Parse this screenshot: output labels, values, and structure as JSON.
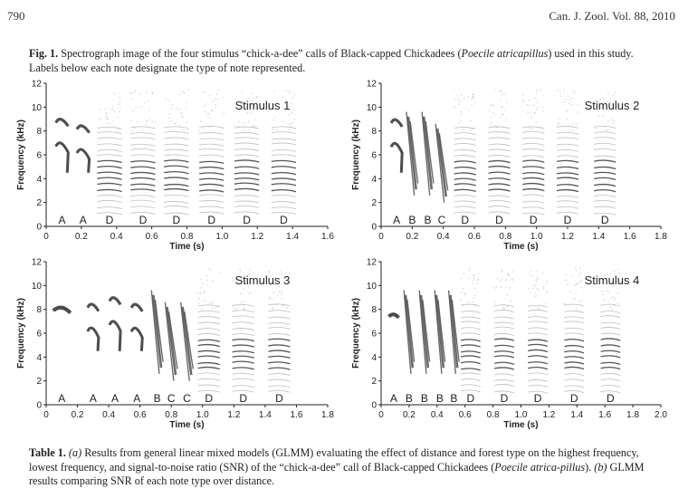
{
  "header": {
    "page_number": "790",
    "journal": "Can. J. Zool. Vol. 88, 2010"
  },
  "figure_caption": {
    "label": "Fig. 1.",
    "text_1": " Spectrograph image of the four stimulus “chick-a-dee” calls of Black-capped Chickadees (",
    "species": "Poecile atricapillus",
    "text_2": ") used in this study. Labels below each note designate the type of note represented."
  },
  "table_caption": {
    "label": "Table 1.",
    "part_a_label": "(a)",
    "text_1": " Results from general linear mixed models (GLMM) evaluating the effect of distance and forest type on the highest frequency, lowest frequency, and signal-to-noise ratio (SNR) of the “chick-a-dee” call of Black-capped Chickadees (",
    "species": "Poecile atrica-pillus",
    "text_2": "). ",
    "part_b_label": "(b)",
    "text_3": " GLMM results comparing SNR of each note type over distance."
  },
  "chart_data": [
    {
      "type": "spectrogram",
      "title": "Stimulus 1",
      "xlabel": "Time (s)",
      "ylabel": "Frequency (kHz)",
      "xlim": [
        0,
        1.6
      ],
      "ylim": [
        0,
        12
      ],
      "xticks": [
        "0",
        "0.2",
        "0.4",
        "0.6",
        "0.8",
        "1.0",
        "1.2",
        "1.4",
        "1.6"
      ],
      "yticks": [
        "0",
        "2",
        "4",
        "6",
        "8",
        "10",
        "12"
      ],
      "notes": [
        {
          "label": "A",
          "time": 0.09
        },
        {
          "label": "A",
          "time": 0.21
        },
        {
          "label": "D",
          "time": 0.36
        },
        {
          "label": "D",
          "time": 0.55
        },
        {
          "label": "D",
          "time": 0.74
        },
        {
          "label": "D",
          "time": 0.94
        },
        {
          "label": "D",
          "time": 1.14
        },
        {
          "label": "D",
          "time": 1.35
        }
      ]
    },
    {
      "type": "spectrogram",
      "title": "Stimulus 2",
      "xlabel": "Time (s)",
      "ylabel": "Frequency (kHz)",
      "xlim": [
        0,
        1.8
      ],
      "ylim": [
        0,
        12
      ],
      "xticks": [
        "0",
        "0.2",
        "0.4",
        "0.6",
        "0.8",
        "1.0",
        "1.2",
        "1.4",
        "1.6",
        "1.8"
      ],
      "yticks": [
        "0",
        "2",
        "4",
        "6",
        "8",
        "10",
        "12"
      ],
      "notes": [
        {
          "label": "A",
          "time": 0.1
        },
        {
          "label": "B",
          "time": 0.2
        },
        {
          "label": "B",
          "time": 0.3
        },
        {
          "label": "C",
          "time": 0.39
        },
        {
          "label": "D",
          "time": 0.54
        },
        {
          "label": "D",
          "time": 0.76
        },
        {
          "label": "D",
          "time": 0.98
        },
        {
          "label": "D",
          "time": 1.2
        },
        {
          "label": "D",
          "time": 1.44
        }
      ]
    },
    {
      "type": "spectrogram",
      "title": "Stimulus 3",
      "xlabel": "Time (s)",
      "ylabel": "Frequency (kHz)",
      "xlim": [
        0,
        1.8
      ],
      "ylim": [
        0,
        12
      ],
      "xticks": [
        "0",
        "0.2",
        "0.4",
        "0.6",
        "0.8",
        "1.0",
        "1.2",
        "1.4",
        "1.6",
        "1.8"
      ],
      "yticks": [
        "0",
        "2",
        "4",
        "6",
        "8",
        "10",
        "12"
      ],
      "notes": [
        {
          "label": "A",
          "time": 0.1
        },
        {
          "label": "A",
          "time": 0.3
        },
        {
          "label": "A",
          "time": 0.44
        },
        {
          "label": "A",
          "time": 0.58
        },
        {
          "label": "B",
          "time": 0.71
        },
        {
          "label": "C",
          "time": 0.8
        },
        {
          "label": "C",
          "time": 0.9
        },
        {
          "label": "D",
          "time": 1.04
        },
        {
          "label": "D",
          "time": 1.26
        },
        {
          "label": "D",
          "time": 1.49
        }
      ]
    },
    {
      "type": "spectrogram",
      "title": "Stimulus 4",
      "xlabel": "Time (s)",
      "ylabel": "Frequency (kHz)",
      "xlim": [
        0,
        2.0
      ],
      "ylim": [
        0,
        12
      ],
      "xticks": [
        "0",
        "0.2",
        "0.4",
        "0.6",
        "0.8",
        "1.0",
        "1.2",
        "1.4",
        "1.6",
        "1.8",
        "2.0"
      ],
      "yticks": [
        "0",
        "2",
        "4",
        "6",
        "8",
        "10",
        "12"
      ],
      "notes": [
        {
          "label": "A",
          "time": 0.09
        },
        {
          "label": "B",
          "time": 0.2
        },
        {
          "label": "B",
          "time": 0.31
        },
        {
          "label": "B",
          "time": 0.42
        },
        {
          "label": "B",
          "time": 0.52
        },
        {
          "label": "D",
          "time": 0.64
        },
        {
          "label": "D",
          "time": 0.88
        },
        {
          "label": "D",
          "time": 1.12
        },
        {
          "label": "D",
          "time": 1.38
        },
        {
          "label": "D",
          "time": 1.64
        }
      ]
    }
  ]
}
